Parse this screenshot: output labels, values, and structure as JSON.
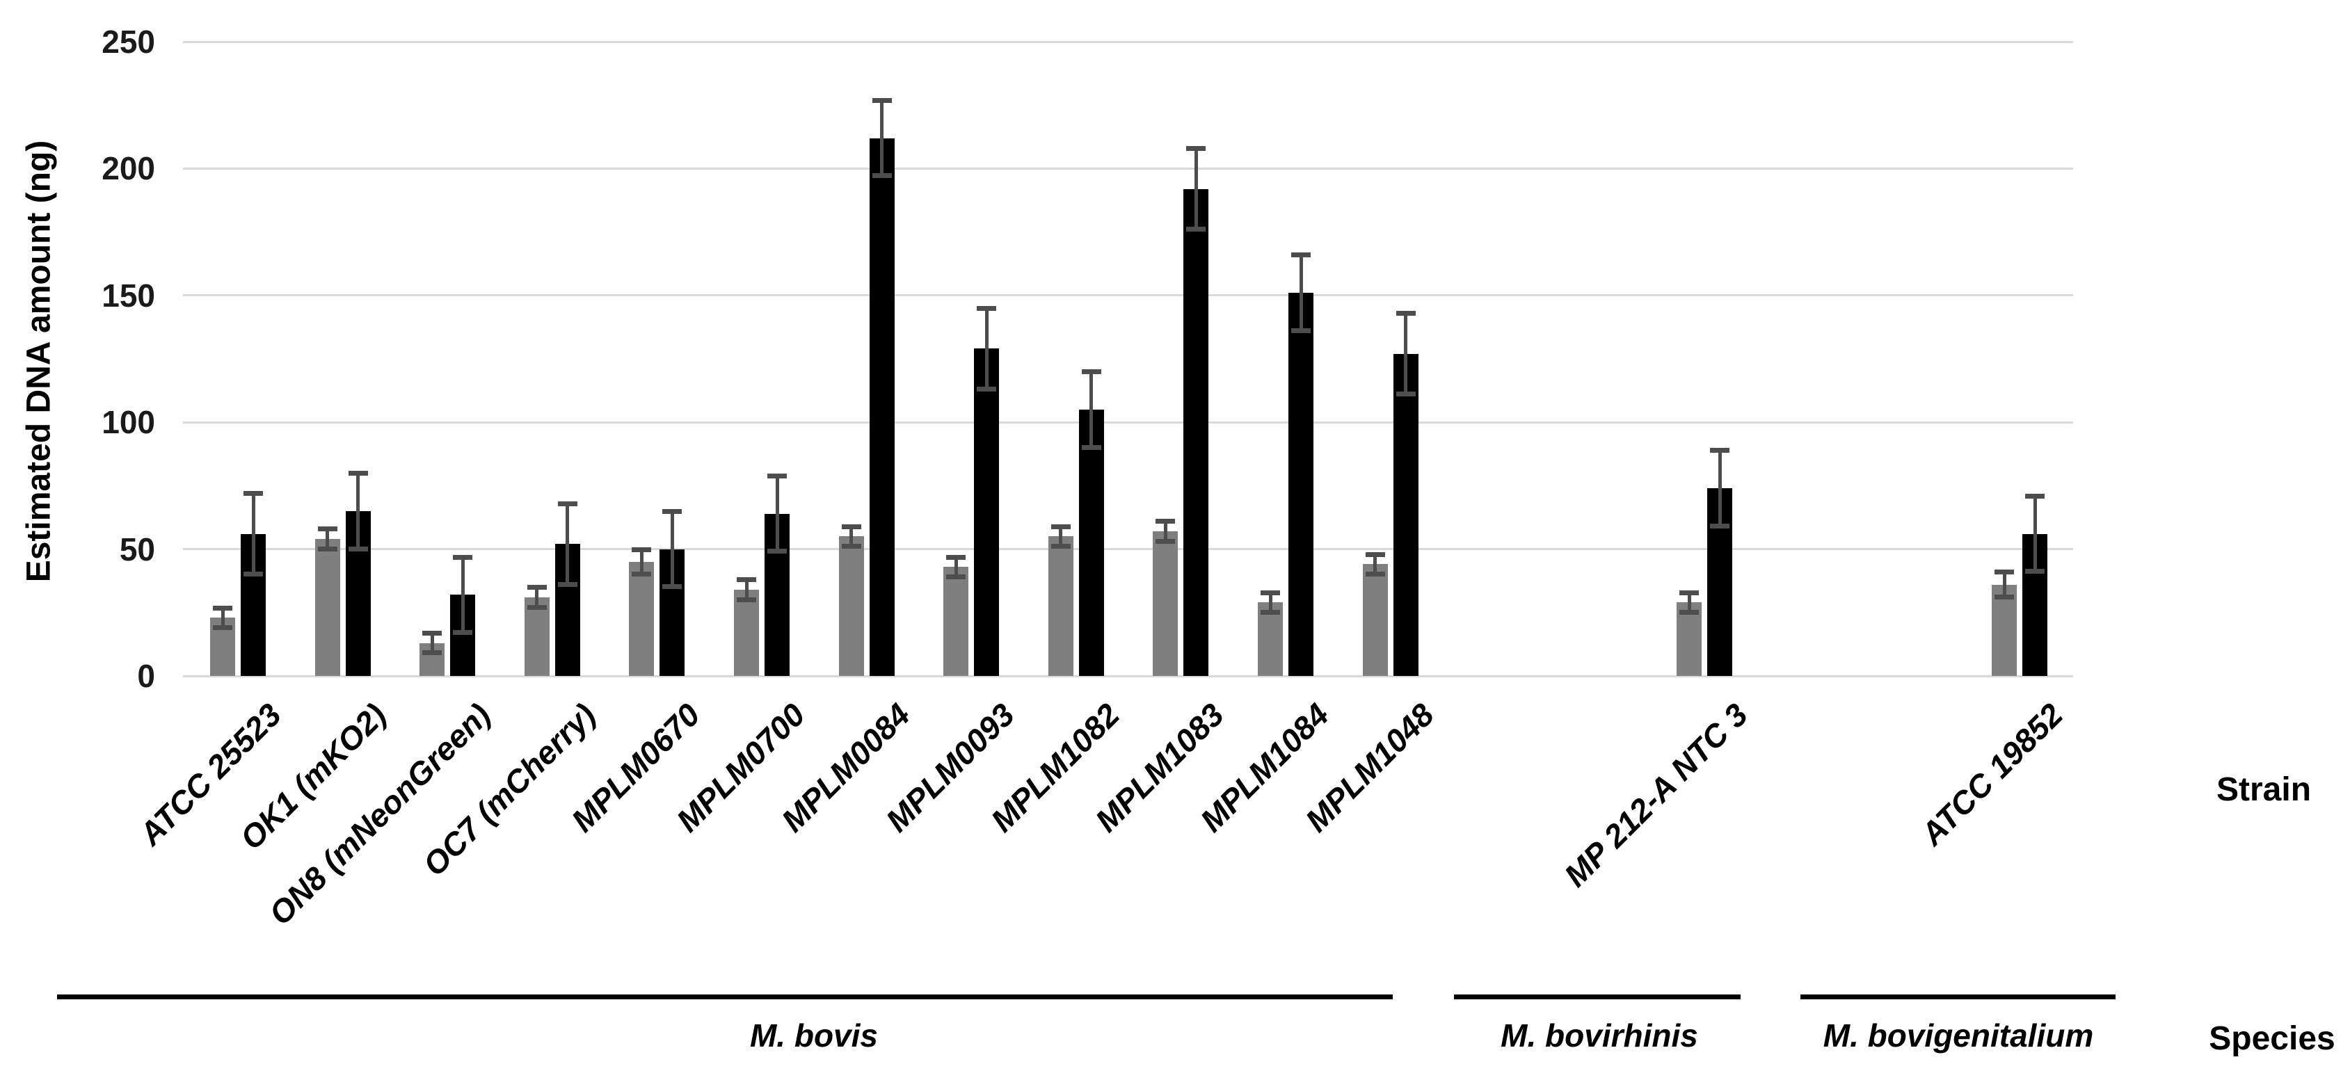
{
  "chart": {
    "ylabel": "Estimated DNA amount (ng)",
    "right_annotations": {
      "strain": "Strain",
      "species": "Species"
    },
    "colors": {
      "gray_bar": "#7f7f7f",
      "black_bar": "#000000",
      "error_bar": "#4d4d4d",
      "gridline": "#d9d9d9",
      "text": "#000000"
    }
  },
  "chart_data": {
    "type": "bar",
    "title": "",
    "ylabel": "Estimated DNA amount (ng)",
    "xlabel": "Strain",
    "ylim": [
      0,
      250
    ],
    "yticks": [
      0,
      50,
      100,
      150,
      200,
      250
    ],
    "grid": true,
    "legend": "none",
    "categories": [
      "ATCC 25523",
      "OK1 (mKO2)",
      "ON8 (mNeonGreen)",
      "OC7 (mCherry)",
      "MPLM0670",
      "MPLM0700",
      "MPLM0084",
      "MPLM0093",
      "MPLM1082",
      "MPLM1083",
      "MPLM1084",
      "MPLM1048",
      "MP 212-A NTC 3",
      "ATCC 19852"
    ],
    "series": [
      {
        "name": "gray bars",
        "color": "#7f7f7f",
        "values": [
          23,
          54,
          13,
          31,
          45,
          34,
          55,
          43,
          55,
          57,
          29,
          44,
          29,
          36
        ],
        "errors": [
          4,
          4,
          4,
          4,
          5,
          4,
          4,
          4,
          4,
          4,
          4,
          4,
          4,
          5
        ]
      },
      {
        "name": "black bars",
        "color": "#000000",
        "values": [
          56,
          65,
          32,
          52,
          50,
          64,
          212,
          129,
          105,
          192,
          151,
          127,
          74,
          56
        ],
        "errors": [
          16,
          15,
          15,
          16,
          15,
          15,
          15,
          16,
          15,
          16,
          15,
          16,
          15,
          15
        ]
      }
    ],
    "species_groups": [
      {
        "label": "M. bovis",
        "from": 0,
        "to": 11
      },
      {
        "label": "M. bovirhinis",
        "from": 12,
        "to": 12
      },
      {
        "label": "M. bovigenitalium",
        "from": 13,
        "to": 13
      }
    ]
  }
}
